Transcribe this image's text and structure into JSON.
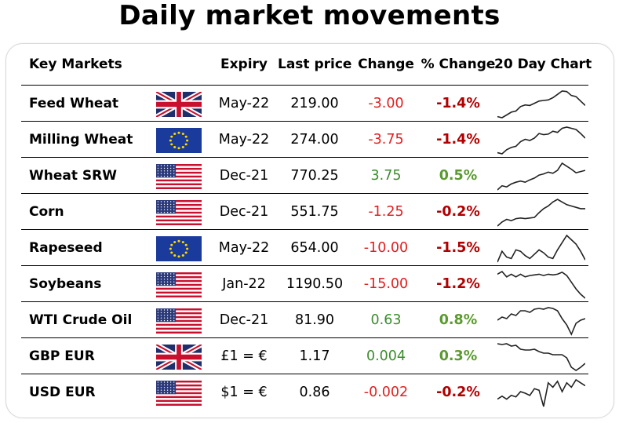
{
  "title": "Daily market movements",
  "colors": {
    "negative": "#e02020",
    "positive": "#3a8d2b",
    "negative_pct": "#b00000",
    "positive_pct": "#5a9a2f",
    "sparkline": "#222222"
  },
  "headers": {
    "market": "Key Markets",
    "expiry": "Expiry",
    "last_price": "Last price",
    "change": "Change",
    "pct_change": "% Change",
    "chart": "20 Day Chart"
  },
  "rows": [
    {
      "name": "Feed Wheat",
      "flag": "gb-flag",
      "expiry": "May-22",
      "last_price": "219.00",
      "change": "-3.00",
      "pct_change": "-1.4%",
      "direction": "down",
      "spark": [
        52,
        50,
        55,
        60,
        62,
        70,
        73,
        72,
        76,
        80,
        81,
        82,
        86,
        92,
        98,
        97,
        90,
        88,
        80,
        72
      ]
    },
    {
      "name": "Milling Wheat",
      "flag": "eu-flag",
      "expiry": "May-22",
      "last_price": "274.00",
      "change": "-3.75",
      "pct_change": "-1.4%",
      "direction": "down",
      "spark": [
        55,
        53,
        60,
        64,
        66,
        74,
        78,
        76,
        80,
        88,
        86,
        87,
        92,
        90,
        97,
        99,
        97,
        95,
        88,
        80
      ]
    },
    {
      "name": "Wheat SRW",
      "flag": "us-flag",
      "expiry": "Dec-21",
      "last_price": "770.25",
      "change": "3.75",
      "pct_change": "0.5%",
      "direction": "up",
      "spark": [
        55,
        62,
        60,
        65,
        68,
        70,
        68,
        72,
        75,
        80,
        82,
        85,
        83,
        88,
        100,
        95,
        90,
        84,
        86,
        88
      ]
    },
    {
      "name": "Corn",
      "flag": "us-flag",
      "expiry": "Dec-21",
      "last_price": "551.75",
      "change": "-1.25",
      "pct_change": "-0.2%",
      "direction": "down",
      "spark": [
        52,
        58,
        62,
        60,
        63,
        64,
        63,
        64,
        65,
        72,
        78,
        82,
        88,
        92,
        88,
        84,
        82,
        80,
        78,
        78
      ]
    },
    {
      "name": "Rapeseed",
      "flag": "eu-flag",
      "expiry": "May-22",
      "last_price": "654.00",
      "change": "-10.00",
      "pct_change": "-1.5%",
      "direction": "down",
      "spark": [
        55,
        70,
        62,
        60,
        72,
        70,
        64,
        60,
        66,
        72,
        68,
        62,
        60,
        72,
        82,
        92,
        86,
        80,
        70,
        58
      ]
    },
    {
      "name": "Soybeans",
      "flag": "us-flag",
      "expiry": "Jan-22",
      "last_price": "1190.50",
      "change": "-15.00",
      "pct_change": "-1.2%",
      "direction": "down",
      "spark": [
        92,
        96,
        88,
        92,
        88,
        92,
        88,
        90,
        91,
        92,
        90,
        92,
        91,
        92,
        95,
        90,
        80,
        70,
        62,
        56
      ]
    },
    {
      "name": "WTI Crude Oil",
      "flag": "us-flag",
      "expiry": "Dec-21",
      "last_price": "81.90",
      "change": "0.63",
      "pct_change": "0.8%",
      "direction": "up",
      "spark": [
        78,
        82,
        80,
        86,
        84,
        90,
        90,
        88,
        92,
        93,
        92,
        94,
        93,
        90,
        80,
        72,
        60,
        74,
        78,
        80
      ]
    },
    {
      "name": "GBP EUR",
      "flag": "gb-flag",
      "expiry": "£1 = €",
      "last_price": "1.17",
      "change": "0.004",
      "pct_change": "0.3%",
      "direction": "up",
      "spark": [
        100,
        99,
        100,
        97,
        98,
        93,
        92,
        92,
        93,
        90,
        88,
        88,
        86,
        86,
        86,
        82,
        70,
        66,
        70,
        75
      ]
    },
    {
      "name": "USD EUR",
      "flag": "us-flag",
      "expiry": "$1 = €",
      "last_price": "0.86",
      "change": "-0.002",
      "pct_change": "-0.2%",
      "direction": "down",
      "spark": [
        70,
        74,
        70,
        75,
        73,
        80,
        78,
        75,
        84,
        82,
        60,
        92,
        86,
        94,
        80,
        92,
        86,
        96,
        92,
        88
      ]
    }
  ]
}
